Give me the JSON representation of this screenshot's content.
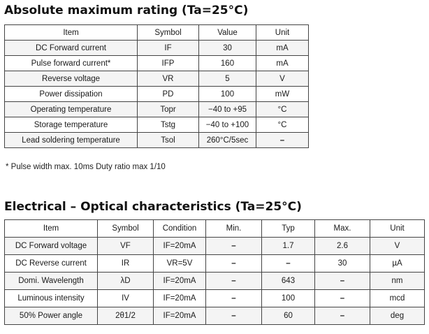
{
  "absolute_max": {
    "title": "Absolute maximum rating (Ta=25°C)",
    "headers": [
      "Item",
      "Symbol",
      "Value",
      "Unit"
    ],
    "rows": [
      [
        "DC Forward current",
        "IF",
        "30",
        "mA"
      ],
      [
        "Pulse forward current*",
        "IFP",
        "160",
        "mA"
      ],
      [
        "Reverse voltage",
        "VR",
        "5",
        "V"
      ],
      [
        "Power dissipation",
        "PD",
        "100",
        "mW"
      ],
      [
        "Operating temperature",
        "Topr",
        "−40 to +95",
        "°C"
      ],
      [
        "Storage temperature",
        "Tstg",
        "−40 to +100",
        "°C"
      ],
      [
        "Lead soldering temperature",
        "Tsol",
        "260°C/5sec",
        "–"
      ]
    ],
    "footnote": "* Pulse width max. 10ms Duty ratio max 1/10"
  },
  "electrical_optical": {
    "title": "Electrical – Optical characteristics (Ta=25°C)",
    "headers": [
      "Item",
      "Symbol",
      "Condition",
      "Min.",
      "Typ",
      "Max.",
      "Unit"
    ],
    "rows": [
      [
        "DC Forward voltage",
        "VF",
        "IF=20mA",
        "–",
        "1.7",
        "2.6",
        "V"
      ],
      [
        "DC Reverse current",
        "IR",
        "VR=5V",
        "–",
        "–",
        "30",
        "µA"
      ],
      [
        "Domi. Wavelength",
        "λD",
        "IF=20mA",
        "–",
        "643",
        "–",
        "nm"
      ],
      [
        "Luminous intensity",
        "IV",
        "IF=20mA",
        "–",
        "100",
        "–",
        "mcd"
      ],
      [
        "50% Power angle",
        "2θ1/2",
        "IF=20mA",
        "–",
        "60",
        "–",
        "deg"
      ]
    ]
  }
}
